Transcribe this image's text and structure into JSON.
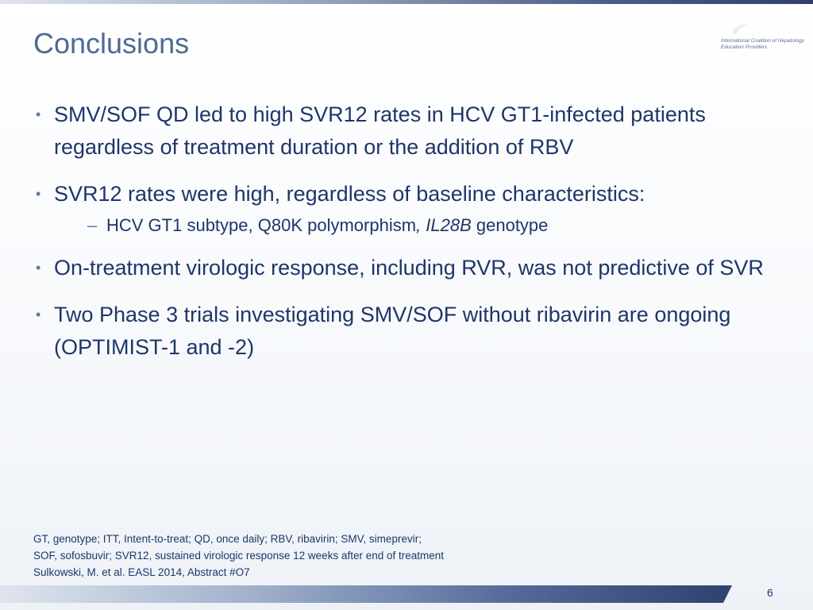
{
  "slide": {
    "title": "Conclusions",
    "logo_text": "International Coalition of Hepatology Education Providers",
    "bullets": [
      {
        "text": "SMV/SOF QD led to high SVR12 rates in HCV GT1-infected patients regardless of treatment duration or the addition of RBV"
      },
      {
        "text": "SVR12 rates were high, regardless of baseline characteristics:",
        "sub": {
          "prefix": "HCV GT1 subtype, Q80K polymorphism",
          "italic": ", IL28B",
          "suffix": " genotype"
        }
      },
      {
        "text": "On-treatment virologic response, including RVR, was not predictive of SVR"
      },
      {
        "text": "Two Phase 3 trials investigating SMV/SOF without ribavirin are ongoing (OPTIMIST-1 and -2)"
      }
    ],
    "footnotes": [
      "GT, genotype; ITT, Intent-to-treat;  QD, once daily; RBV, ribavirin;  SMV, simeprevir;",
      "SOF, sofosbuvir; SVR12, sustained virologic response 12 weeks after end of treatment",
      "Sulkowski, M. et al. EASL 2014, Abstract #O7"
    ],
    "page_number": "6"
  },
  "colors": {
    "title": "#4d6a93",
    "body_text": "#1e3669",
    "bullet_marker": "#5b7aa6"
  },
  "icons": {
    "logo": "ichep-logo-icon",
    "bullet": "bullet-dot-icon",
    "dash": "dash-icon"
  }
}
